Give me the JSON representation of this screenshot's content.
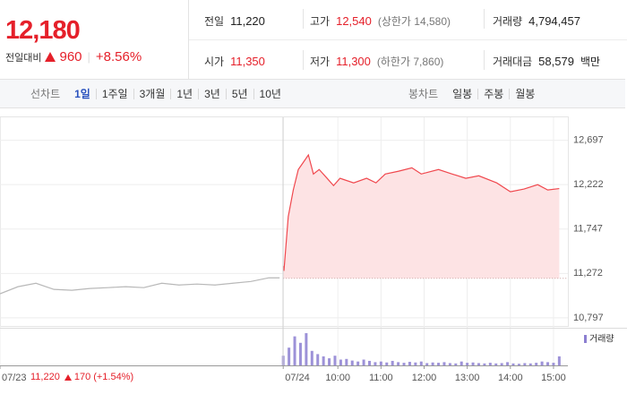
{
  "header": {
    "price": "12,180",
    "change_label": "전일대비",
    "change": "960",
    "change_rate": "+8.56%",
    "stats": [
      {
        "label": "전일",
        "value": "11,220",
        "color": "#222222"
      },
      {
        "label": "고가",
        "value": "12,540",
        "color": "#e5202a",
        "note": "(상한가 14,580)"
      },
      {
        "label": "거래량",
        "value": "4,794,457",
        "color": "#222222"
      },
      {
        "label": "시가",
        "value": "11,350",
        "color": "#e5202a"
      },
      {
        "label": "저가",
        "value": "11,300",
        "color": "#e5202a",
        "note": "(하한가 7,860)"
      },
      {
        "label": "거래대금",
        "value": "58,579",
        "color": "#222222",
        "unit": "백만"
      }
    ]
  },
  "tabs": {
    "line_label": "선차트",
    "line": [
      "1일",
      "1주일",
      "3개월",
      "1년",
      "3년",
      "5년",
      "10년"
    ],
    "active": 0,
    "candle_label": "봉차트",
    "candle": [
      "일봉",
      "주봉",
      "월봉"
    ]
  },
  "footer": {
    "prev_close": "11,220",
    "prev_change": "170",
    "prev_rate": "(+1.54%)"
  },
  "chart_data": [
    {
      "type": "line",
      "reference": 11220,
      "xlim": [
        -410,
        380
      ],
      "xticks": [
        {
          "value": -410,
          "label": "07/23"
        },
        {
          "value": -16,
          "label": "07/24"
        },
        {
          "value": 60,
          "label": "10:00"
        },
        {
          "value": 120,
          "label": "11:00"
        },
        {
          "value": 180,
          "label": "12:00"
        },
        {
          "value": 240,
          "label": "13:00"
        },
        {
          "value": 300,
          "label": "14:00"
        },
        {
          "value": 360,
          "label": "15:00"
        }
      ],
      "ylim": [
        10700,
        13000
      ],
      "yticks": [
        {
          "value": 10797,
          "label": "10,797"
        },
        {
          "value": 11272,
          "label": "11,272"
        },
        {
          "value": 11747,
          "label": "11,747"
        },
        {
          "value": 12222,
          "label": "12,222"
        },
        {
          "value": 12697,
          "label": "12,697"
        }
      ],
      "series": [
        {
          "color": "#b8b8b8",
          "x": [
            -410,
            -385,
            -360,
            -335,
            -310,
            -285,
            -260,
            -235,
            -210,
            -185,
            -161,
            -136,
            -111,
            -86,
            -61,
            -36,
            -21
          ],
          "values": [
            11054,
            11130,
            11167,
            11101,
            11092,
            11111,
            11120,
            11130,
            11120,
            11167,
            11148,
            11158,
            11148,
            11167,
            11186,
            11225,
            11225
          ]
        },
        {
          "color": "#f0484e",
          "fill": "#fde3e4",
          "x": [
            -16,
            -15,
            -9,
            -2,
            5,
            11,
            19,
            26,
            34,
            45,
            54,
            63,
            82,
            100,
            113,
            126,
            144,
            163,
            176,
            200,
            219,
            238,
            256,
            281,
            300,
            319,
            338,
            352,
            368
          ],
          "values": [
            11350,
            11300,
            11880,
            12165,
            12384,
            12450,
            12540,
            12336,
            12384,
            12290,
            12212,
            12290,
            12241,
            12290,
            12241,
            12336,
            12365,
            12402,
            12336,
            12384,
            12336,
            12290,
            12317,
            12241,
            12146,
            12175,
            12222,
            12165,
            12180
          ]
        }
      ]
    },
    {
      "type": "bar",
      "xlim": [
        -410,
        380
      ],
      "ylim": [
        0,
        100
      ],
      "series": [
        {
          "name": "거래량",
          "color": "#8c7fd1",
          "x": [
            -16,
            -8,
            0,
            8,
            16,
            24,
            32,
            40,
            48,
            56,
            64,
            72,
            80,
            88,
            96,
            104,
            112,
            120,
            128,
            136,
            144,
            152,
            160,
            168,
            176,
            184,
            192,
            200,
            208,
            216,
            224,
            232,
            240,
            248,
            256,
            264,
            272,
            280,
            288,
            296,
            304,
            312,
            320,
            328,
            336,
            344,
            352,
            360,
            368
          ],
          "values": [
            30,
            55,
            90,
            70,
            100,
            45,
            35,
            28,
            22,
            30,
            18,
            20,
            15,
            12,
            18,
            14,
            10,
            12,
            9,
            14,
            10,
            8,
            11,
            9,
            12,
            7,
            9,
            8,
            10,
            7,
            6,
            12,
            8,
            9,
            7,
            6,
            8,
            6,
            7,
            10,
            6,
            5,
            7,
            6,
            8,
            12,
            10,
            8,
            28
          ]
        }
      ]
    }
  ]
}
